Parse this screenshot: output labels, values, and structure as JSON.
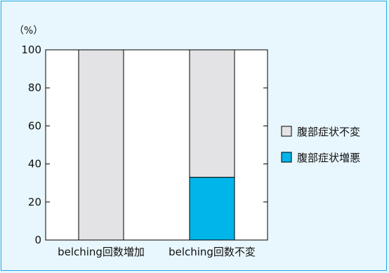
{
  "chart_data": {
    "type": "bar",
    "stacked": true,
    "unit_label": "（%）",
    "categories": [
      "belching回数増加",
      "belching回数不変"
    ],
    "series": [
      {
        "name": "腹部症状増悪",
        "values": [
          0,
          33
        ],
        "color": "#00b5ea"
      },
      {
        "name": "腹部症状不変",
        "values": [
          100,
          67
        ],
        "color": "#e3e3e5"
      }
    ],
    "ylim": [
      0,
      100
    ],
    "yticks": [
      0,
      20,
      40,
      60,
      80,
      100
    ],
    "legend": [
      "腹部症状不変",
      "腹部症状増悪"
    ],
    "legend_placement": "right",
    "grid": false,
    "background": "#e8f6fd",
    "plot_background": "#ffffff",
    "border_color": "#22a8e6"
  }
}
